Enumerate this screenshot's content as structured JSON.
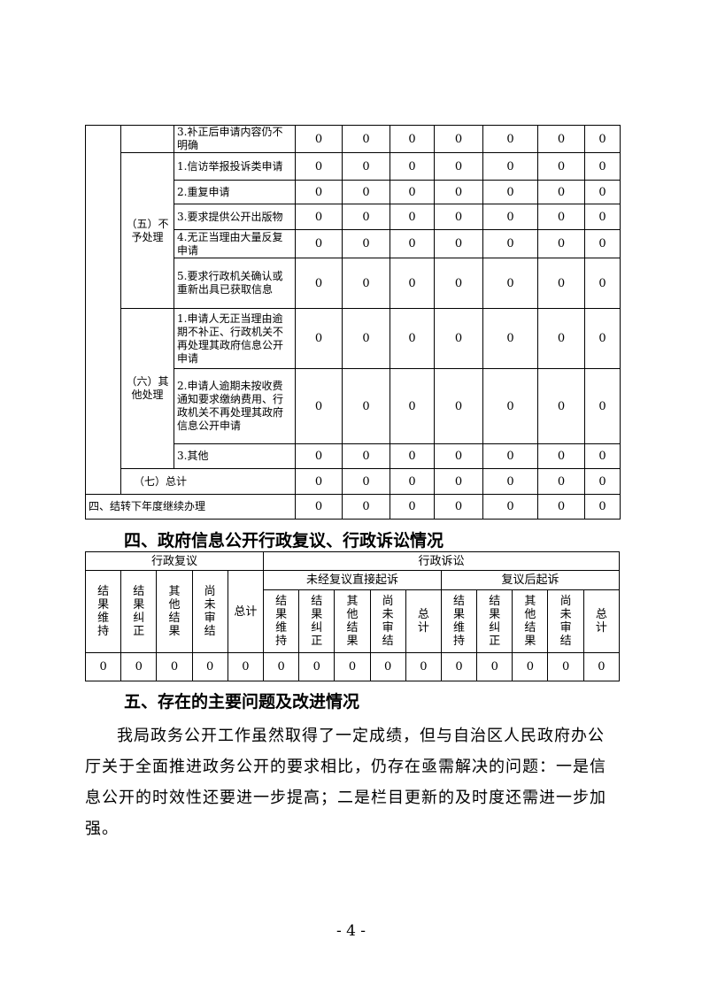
{
  "table1": {
    "rows": [
      {
        "group": "",
        "item": "3.补正后申请内容仍不明确",
        "values": [
          "0",
          "0",
          "0",
          "0",
          "0",
          "0",
          "0"
        ]
      },
      {
        "group": "（五）不予处理",
        "item": "1.信访举报投诉类申请",
        "values": [
          "0",
          "0",
          "0",
          "0",
          "0",
          "0",
          "0"
        ]
      },
      {
        "item": "2.重复申请",
        "values": [
          "0",
          "0",
          "0",
          "0",
          "0",
          "0",
          "0"
        ]
      },
      {
        "item": "3.要求提供公开出版物",
        "values": [
          "0",
          "0",
          "0",
          "0",
          "0",
          "0",
          "0"
        ]
      },
      {
        "item": "4.无正当理由大量反复申请",
        "values": [
          "0",
          "0",
          "0",
          "0",
          "0",
          "0",
          "0"
        ]
      },
      {
        "item": "5.要求行政机关确认或重新出具已获取信息",
        "values": [
          "0",
          "0",
          "0",
          "0",
          "0",
          "0",
          "0"
        ]
      },
      {
        "group": "（六）其他处理",
        "item": "1.申请人无正当理由逾期不补正、行政机关不再处理其政府信息公开申请",
        "values": [
          "0",
          "0",
          "0",
          "0",
          "0",
          "0",
          "0"
        ]
      },
      {
        "item": "2.申请人逾期未按收费通知要求缴纳费用、行政机关不再处理其政府信息公开申请",
        "values": [
          "0",
          "0",
          "0",
          "0",
          "0",
          "0",
          "0"
        ]
      },
      {
        "item": "3.其他",
        "values": [
          "0",
          "0",
          "0",
          "0",
          "0",
          "0",
          "0"
        ]
      }
    ],
    "total": {
      "label": "（七）总计",
      "values": [
        "0",
        "0",
        "0",
        "0",
        "0",
        "0",
        "0"
      ]
    },
    "carry": {
      "label": "四、结转下年度继续办理",
      "values": [
        "0",
        "0",
        "0",
        "0",
        "0",
        "0",
        "0"
      ]
    }
  },
  "section4": {
    "heading": "四、政府信息公开行政复议、行政诉讼情况"
  },
  "table2": {
    "review": "行政复议",
    "litigation": "行政诉讼",
    "direct": "未经复议直接起诉",
    "after": "复议后起诉",
    "cols": [
      "结果维持",
      "结果纠正",
      "其他结果",
      "尚未审结",
      "总计"
    ],
    "values": [
      "0",
      "0",
      "0",
      "0",
      "0",
      "0",
      "0",
      "0",
      "0",
      "0",
      "0",
      "0",
      "0",
      "0",
      "0"
    ]
  },
  "section5": {
    "heading": "五、存在的主要问题及改进情况",
    "paragraph": "我局政务公开工作虽然取得了一定成绩，但与自治区人民政府办公厅关于全面推进政务公开的要求相比，仍存在亟需解决的问题：一是信息公开的时效性还要进一步提高；二是栏目更新的及时度还需进一步加强。"
  },
  "page_number": "- 4 -"
}
